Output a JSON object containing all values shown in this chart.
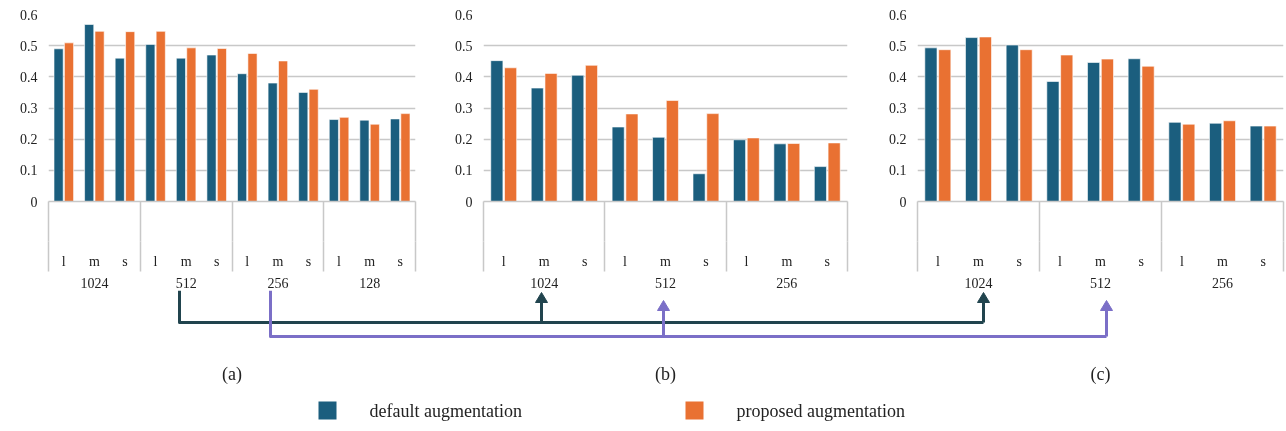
{
  "chart_data": [
    {
      "type": "bar",
      "title": "(a)",
      "categories": [
        "l",
        "m",
        "s",
        "l",
        "m",
        "s",
        "l",
        "m",
        "s",
        "l",
        "m",
        "s"
      ],
      "annotations": [
        "1024",
        "512",
        "256",
        "128"
      ],
      "ylim": [
        0,
        0.6
      ],
      "yticks": [
        0,
        0.1,
        0.2,
        0.3,
        0.4,
        0.5,
        0.6
      ],
      "grid": "y",
      "legend": "bottom",
      "series": [
        {
          "name": "default augmentation",
          "color": "#1b5e7e",
          "values": [
            0.49,
            0.568,
            0.46,
            0.504,
            0.46,
            0.47,
            0.41,
            0.38,
            0.35,
            0.263,
            0.261,
            0.265
          ]
        },
        {
          "name": "proposed augmentation",
          "color": "#e97132",
          "values": [
            0.509,
            0.546,
            0.545,
            0.546,
            0.493,
            0.491,
            0.475,
            0.451,
            0.36,
            0.27,
            0.248,
            0.282
          ]
        }
      ]
    },
    {
      "type": "bar",
      "title": "(b)",
      "categories": [
        "l",
        "m",
        "s",
        "l",
        "m",
        "s",
        "l",
        "m",
        "s"
      ],
      "annotations": [
        "1024",
        "512",
        "256"
      ],
      "ylim": [
        0,
        0.6
      ],
      "yticks": [
        0,
        0.1,
        0.2,
        0.3,
        0.4,
        0.5,
        0.6
      ],
      "grid": "y",
      "series": [
        {
          "color": "#1b5e7e",
          "values": [
            0.452,
            0.364,
            0.405,
            0.239,
            0.206,
            0.089,
            0.198,
            0.185,
            0.112
          ]
        },
        {
          "color": "#e97132",
          "values": [
            0.429,
            0.411,
            0.437,
            0.281,
            0.324,
            0.282,
            0.204,
            0.186,
            0.188
          ]
        }
      ]
    },
    {
      "type": "bar",
      "title": "(c)",
      "categories": [
        "l",
        "m",
        "s",
        "l",
        "m",
        "s",
        "l",
        "m",
        "s"
      ],
      "annotations": [
        "1024",
        "512",
        "256"
      ],
      "ylim": [
        0,
        0.6
      ],
      "yticks": [
        0,
        0.1,
        0.2,
        0.3,
        0.4,
        0.5,
        0.6
      ],
      "grid": "y",
      "series": [
        {
          "color": "#1b5e7e",
          "values": [
            0.493,
            0.526,
            0.502,
            0.385,
            0.446,
            0.458,
            0.254,
            0.251,
            0.242
          ]
        },
        {
          "color": "#e97132",
          "values": [
            0.487,
            0.528,
            0.487,
            0.47,
            0.457,
            0.434,
            0.248,
            0.259,
            0.242
          ]
        }
      ]
    }
  ]
}
